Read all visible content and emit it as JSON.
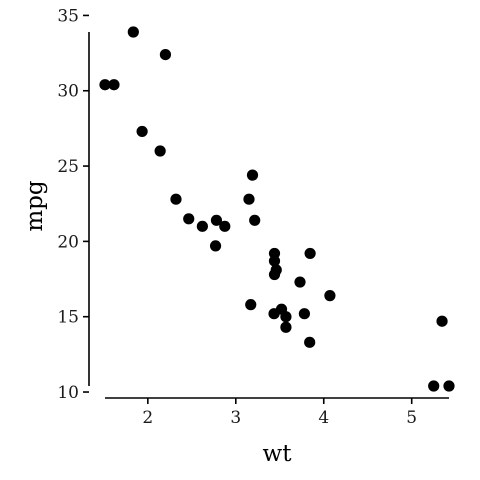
{
  "chart_data": {
    "type": "scatter",
    "xlabel": "wt",
    "ylabel": "mpg",
    "xlim": [
      1.513,
      5.424
    ],
    "ylim": [
      10.4,
      33.9
    ],
    "x_ticks": [
      2,
      3,
      4,
      5
    ],
    "y_ticks": [
      10,
      15,
      20,
      25,
      30,
      35
    ],
    "x_tick_labels": [
      "2",
      "3",
      "4",
      "5"
    ],
    "y_tick_labels": [
      "10",
      "15",
      "20",
      "25",
      "30",
      "35"
    ],
    "grid": false,
    "legend": "none",
    "point_color": "#000000",
    "points": [
      {
        "x": 2.62,
        "y": 21.0
      },
      {
        "x": 2.875,
        "y": 21.0
      },
      {
        "x": 2.32,
        "y": 22.8
      },
      {
        "x": 3.215,
        "y": 21.4
      },
      {
        "x": 3.44,
        "y": 18.7
      },
      {
        "x": 3.46,
        "y": 18.1
      },
      {
        "x": 3.57,
        "y": 14.3
      },
      {
        "x": 3.19,
        "y": 24.4
      },
      {
        "x": 3.15,
        "y": 22.8
      },
      {
        "x": 3.44,
        "y": 19.2
      },
      {
        "x": 3.44,
        "y": 17.8
      },
      {
        "x": 4.07,
        "y": 16.4
      },
      {
        "x": 3.73,
        "y": 17.3
      },
      {
        "x": 3.78,
        "y": 15.2
      },
      {
        "x": 5.25,
        "y": 10.4
      },
      {
        "x": 5.424,
        "y": 10.4
      },
      {
        "x": 5.345,
        "y": 14.7
      },
      {
        "x": 2.2,
        "y": 32.4
      },
      {
        "x": 1.615,
        "y": 30.4
      },
      {
        "x": 1.835,
        "y": 33.9
      },
      {
        "x": 2.465,
        "y": 21.5
      },
      {
        "x": 3.52,
        "y": 15.5
      },
      {
        "x": 3.435,
        "y": 15.2
      },
      {
        "x": 3.84,
        "y": 13.3
      },
      {
        "x": 3.845,
        "y": 19.2
      },
      {
        "x": 1.935,
        "y": 27.3
      },
      {
        "x": 2.14,
        "y": 26.0
      },
      {
        "x": 1.513,
        "y": 30.4
      },
      {
        "x": 3.17,
        "y": 15.8
      },
      {
        "x": 2.77,
        "y": 19.7
      },
      {
        "x": 3.57,
        "y": 15.0
      },
      {
        "x": 2.78,
        "y": 21.4
      }
    ]
  }
}
